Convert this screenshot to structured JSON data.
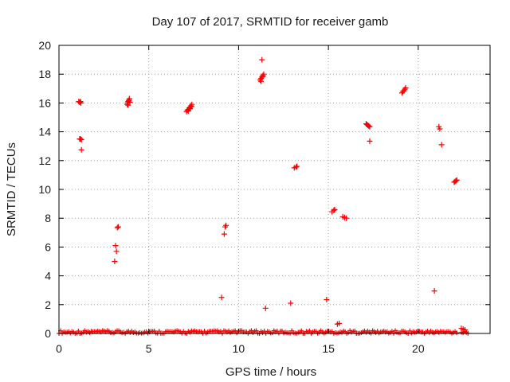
{
  "chart_data": {
    "type": "scatter",
    "title": "Day 107 of 2017, SRMTID for receiver gamb",
    "xlabel": "GPS time / hours",
    "ylabel": "SRMTID / TECUs",
    "xlim": [
      0,
      24
    ],
    "ylim": [
      0,
      20
    ],
    "xticks": [
      0,
      5,
      10,
      15,
      20
    ],
    "yticks": [
      0,
      2,
      4,
      6,
      8,
      10,
      12,
      14,
      16,
      18,
      20
    ],
    "xtick_labels": [
      "0",
      "5",
      "10",
      "15",
      "20"
    ],
    "ytick_labels": [
      "0",
      "2",
      "4",
      "6",
      "8",
      "10",
      "12",
      "14",
      "16",
      "18",
      "20"
    ],
    "grid": true,
    "marker": "plus",
    "color": "#ff0000",
    "series": [
      {
        "name": "SRMTID",
        "baseline": {
          "x_range": [
            0.0,
            22.8
          ],
          "y_range": [
            0.0,
            0.2
          ],
          "step": 0.09,
          "gaps": [
            [
              22.2,
              22.35
            ]
          ]
        },
        "points": [
          [
            1.1,
            16.1
          ],
          [
            1.15,
            16.05
          ],
          [
            1.2,
            16.1
          ],
          [
            1.22,
            16.0
          ],
          [
            1.15,
            13.5
          ],
          [
            1.2,
            13.5
          ],
          [
            1.25,
            13.45
          ],
          [
            1.25,
            12.75
          ],
          [
            3.1,
            5.0
          ],
          [
            3.15,
            6.1
          ],
          [
            3.2,
            5.7
          ],
          [
            3.25,
            7.35
          ],
          [
            3.3,
            7.4
          ],
          [
            3.8,
            15.9
          ],
          [
            3.82,
            16.0
          ],
          [
            3.85,
            16.1
          ],
          [
            3.88,
            16.15
          ],
          [
            3.9,
            16.2
          ],
          [
            3.92,
            16.3
          ],
          [
            3.95,
            16.05
          ],
          [
            3.85,
            15.85
          ],
          [
            7.1,
            15.4
          ],
          [
            7.15,
            15.5
          ],
          [
            7.2,
            15.55
          ],
          [
            7.25,
            15.65
          ],
          [
            7.3,
            15.7
          ],
          [
            7.35,
            15.8
          ],
          [
            7.4,
            15.9
          ],
          [
            7.2,
            15.45
          ],
          [
            7.3,
            15.6
          ],
          [
            7.38,
            15.75
          ],
          [
            9.05,
            2.5
          ],
          [
            9.2,
            6.9
          ],
          [
            9.25,
            7.4
          ],
          [
            9.3,
            7.5
          ],
          [
            11.2,
            17.6
          ],
          [
            11.25,
            17.7
          ],
          [
            11.3,
            17.8
          ],
          [
            11.35,
            17.9
          ],
          [
            11.4,
            18.0
          ],
          [
            11.25,
            17.5
          ],
          [
            11.35,
            17.85
          ],
          [
            11.3,
            19.0
          ],
          [
            11.5,
            1.75
          ],
          [
            12.9,
            2.1
          ],
          [
            13.1,
            11.5
          ],
          [
            13.2,
            11.55
          ],
          [
            13.25,
            11.6
          ],
          [
            14.9,
            2.35
          ],
          [
            15.2,
            8.45
          ],
          [
            15.3,
            8.55
          ],
          [
            15.35,
            8.6
          ],
          [
            15.5,
            0.65
          ],
          [
            15.6,
            0.7
          ],
          [
            15.8,
            8.1
          ],
          [
            15.9,
            8.05
          ],
          [
            16.0,
            8.0
          ],
          [
            17.1,
            14.55
          ],
          [
            17.15,
            14.5
          ],
          [
            17.2,
            14.45
          ],
          [
            17.25,
            14.4
          ],
          [
            17.3,
            14.35
          ],
          [
            17.3,
            13.35
          ],
          [
            19.1,
            16.7
          ],
          [
            19.15,
            16.8
          ],
          [
            19.2,
            16.85
          ],
          [
            19.25,
            16.95
          ],
          [
            19.3,
            17.05
          ],
          [
            20.9,
            2.95
          ],
          [
            21.15,
            14.35
          ],
          [
            21.2,
            14.2
          ],
          [
            21.3,
            13.1
          ],
          [
            22.0,
            10.5
          ],
          [
            22.05,
            10.55
          ],
          [
            22.1,
            10.6
          ],
          [
            22.15,
            10.65
          ],
          [
            22.4,
            0.35
          ],
          [
            22.5,
            0.3
          ],
          [
            22.6,
            0.25
          ]
        ]
      }
    ]
  }
}
